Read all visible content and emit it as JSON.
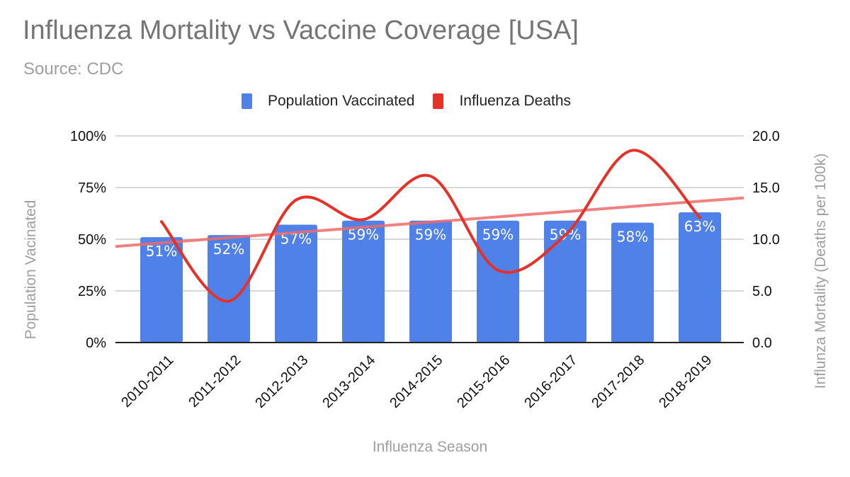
{
  "header": {
    "title": "Influenza Mortality vs Vaccine Coverage [USA]",
    "subtitle": "Source: CDC"
  },
  "colors": {
    "bar": "#4f81e8",
    "line": "#e53229",
    "trend": "#ec6b6b",
    "grid": "#cccccc",
    "axis": "#222222"
  },
  "chart_data": {
    "type": "bar",
    "title": "Influenza Mortality vs Vaccine Coverage [USA]",
    "subtitle": "Source: CDC",
    "xlabel": "Influenza Season",
    "ylabel": "Population Vacinated",
    "y2label": "Influnza Mortality (Deaths per 100k)",
    "categories": [
      "2010-2011",
      "2011-2012",
      "2012-2013",
      "2013-2014",
      "2014-2015",
      "2015-2016",
      "2016-2017",
      "2017-2018",
      "2018-2019"
    ],
    "legend": {
      "placement": "top",
      "entries": [
        "Population Vaccinated",
        "Influenza Deaths"
      ]
    },
    "series": [
      {
        "name": "Population Vaccinated",
        "type": "bar",
        "axis": "left",
        "values": [
          51,
          52,
          57,
          59,
          59,
          59,
          59,
          58,
          63
        ],
        "labels": [
          "51%",
          "52%",
          "57%",
          "59%",
          "59%",
          "59%",
          "59%",
          "58%",
          "63%"
        ]
      },
      {
        "name": "Influenza Deaths",
        "type": "line",
        "smooth": true,
        "axis": "right",
        "values": [
          11.7,
          4.0,
          13.8,
          11.9,
          16.1,
          7.0,
          10.4,
          18.6,
          12.1
        ]
      },
      {
        "name": "Influenza Deaths trendline",
        "type": "trendline",
        "axis": "right",
        "start": 9.3,
        "end": 14.0
      }
    ],
    "ylim": [
      0,
      100
    ],
    "y2lim": [
      0,
      20
    ],
    "yticks": [
      "0%",
      "25%",
      "50%",
      "75%",
      "100%"
    ],
    "y2ticks": [
      "0.0",
      "5.0",
      "10.0",
      "15.0",
      "20.0"
    ],
    "ytick_values": [
      0,
      25,
      50,
      75,
      100
    ],
    "grid": true
  }
}
